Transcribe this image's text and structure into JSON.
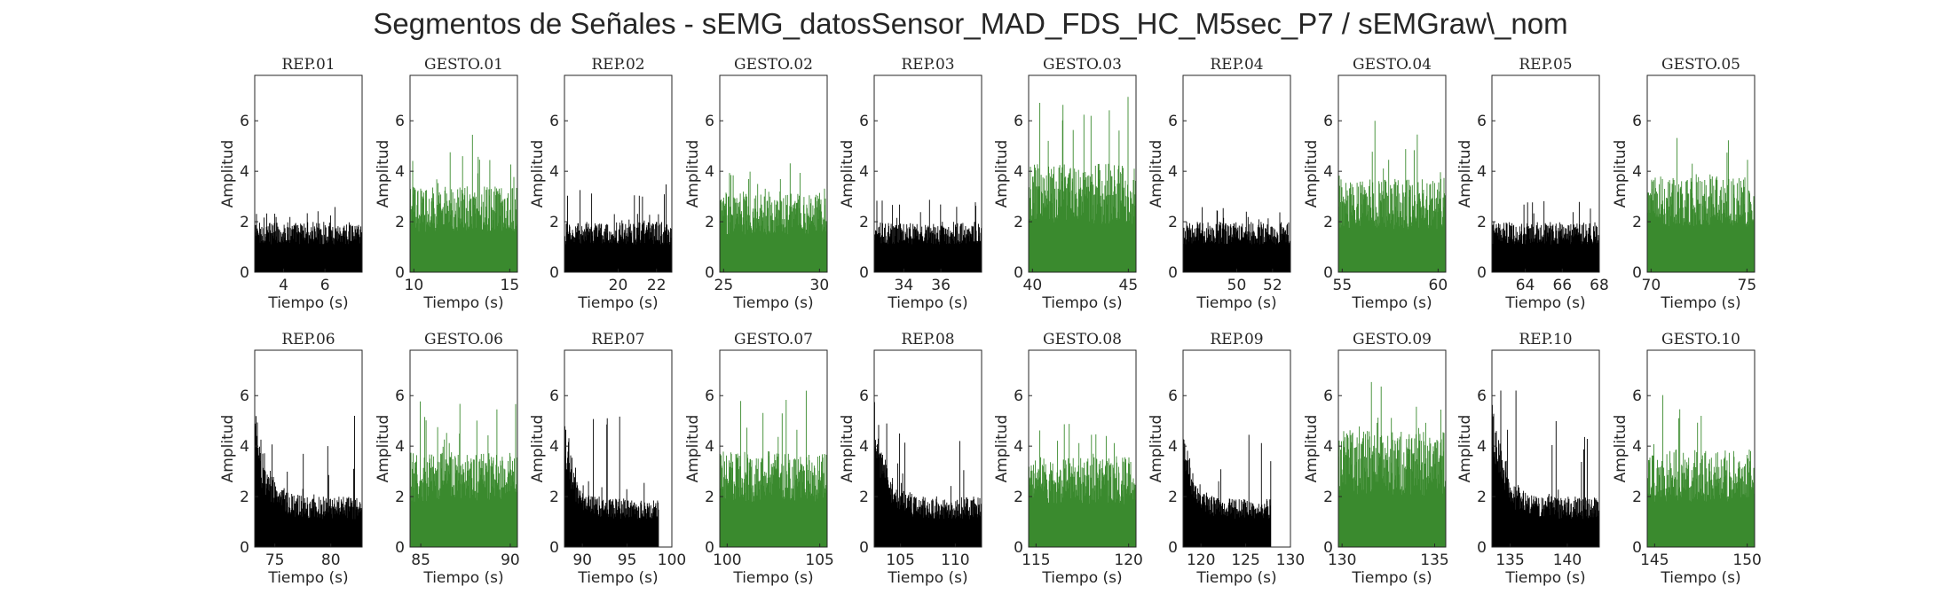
{
  "figure": {
    "title": "Segmentos de Señales - sEMG_datosSensor_MAD_FDS_HC_M5sec_P7 / sEMGraw\\_nom"
  },
  "chart_data": {
    "type": "bar",
    "description_colors": {
      "rep": "#000000",
      "gesto": "#3a8a2e"
    },
    "xlabel": "Tiempo (s)",
    "ylabel": "Amplitud",
    "ylim": [
      0,
      7.8
    ],
    "yticks": [
      0,
      2,
      4,
      6
    ],
    "panels": [
      {
        "title": "REP_01",
        "kind": "rep",
        "xlim": [
          2.6,
          7.8
        ],
        "xticks": [
          4,
          6
        ],
        "data_x": [
          2.6,
          7.8
        ],
        "base": 1.1,
        "noise": 0.9,
        "peak": 2.6,
        "decay": 0
      },
      {
        "title": "GESTO_01",
        "kind": "gesto",
        "xlim": [
          9.8,
          15.4
        ],
        "xticks": [
          10,
          15
        ],
        "data_x": [
          9.8,
          15.4
        ],
        "base": 1.6,
        "noise": 1.8,
        "peak": 5.5,
        "decay": 0
      },
      {
        "title": "REP_02",
        "kind": "rep",
        "xlim": [
          17.2,
          22.8
        ],
        "xticks": [
          20,
          22
        ],
        "data_x": [
          17.2,
          22.8
        ],
        "base": 1.1,
        "noise": 0.9,
        "peak": 3.8,
        "decay": 0
      },
      {
        "title": "GESTO_02",
        "kind": "gesto",
        "xlim": [
          24.8,
          30.4
        ],
        "xticks": [
          25,
          30
        ],
        "data_x": [
          24.8,
          30.4
        ],
        "base": 1.5,
        "noise": 1.7,
        "peak": 4.4,
        "decay": 0
      },
      {
        "title": "REP_03",
        "kind": "rep",
        "xlim": [
          32.4,
          38.2
        ],
        "xticks": [
          34,
          36
        ],
        "data_x": [
          32.4,
          38.2
        ],
        "base": 1.1,
        "noise": 0.9,
        "peak": 2.9,
        "decay": 0
      },
      {
        "title": "GESTO_03",
        "kind": "gesto",
        "xlim": [
          39.8,
          45.4
        ],
        "xticks": [
          40,
          45
        ],
        "data_x": [
          39.8,
          45.4
        ],
        "base": 1.9,
        "noise": 2.4,
        "peak": 7.3,
        "decay": 0
      },
      {
        "title": "REP_04",
        "kind": "rep",
        "xlim": [
          47.0,
          53.0
        ],
        "xticks": [
          50,
          52
        ],
        "data_x": [
          47.0,
          53.0
        ],
        "base": 1.1,
        "noise": 0.9,
        "peak": 2.6,
        "decay": 0
      },
      {
        "title": "GESTO_04",
        "kind": "gesto",
        "xlim": [
          54.8,
          60.4
        ],
        "xticks": [
          55,
          60
        ],
        "data_x": [
          54.8,
          60.4
        ],
        "base": 1.7,
        "noise": 2.0,
        "peak": 6.0,
        "decay": 0
      },
      {
        "title": "REP_05",
        "kind": "rep",
        "xlim": [
          62.2,
          68.0
        ],
        "xticks": [
          64,
          66,
          68
        ],
        "data_x": [
          62.2,
          68.0
        ],
        "base": 1.1,
        "noise": 0.9,
        "peak": 3.1,
        "decay": 0
      },
      {
        "title": "GESTO_05",
        "kind": "gesto",
        "xlim": [
          69.8,
          75.4
        ],
        "xticks": [
          70,
          75
        ],
        "data_x": [
          69.8,
          75.4
        ],
        "base": 1.8,
        "noise": 2.0,
        "peak": 5.4,
        "decay": 0
      },
      {
        "title": "REP_06",
        "kind": "rep",
        "xlim": [
          73.2,
          82.8
        ],
        "xticks": [
          75,
          80
        ],
        "data_x": [
          73.2,
          82.8
        ],
        "base": 1.1,
        "noise": 0.9,
        "peak": 5.5,
        "decay": 3.5
      },
      {
        "title": "GESTO_06",
        "kind": "gesto",
        "xlim": [
          84.4,
          90.4
        ],
        "xticks": [
          85,
          90
        ],
        "data_x": [
          84.4,
          90.4
        ],
        "base": 1.8,
        "noise": 2.0,
        "peak": 5.8,
        "decay": 0
      },
      {
        "title": "REP_07",
        "kind": "rep",
        "xlim": [
          88.0,
          100.0
        ],
        "xticks": [
          90,
          95,
          100
        ],
        "data_x": [
          88.0,
          98.5
        ],
        "base": 1.1,
        "noise": 0.8,
        "peak": 5.2,
        "decay": 3.2
      },
      {
        "title": "GESTO_07",
        "kind": "gesto",
        "xlim": [
          99.6,
          105.4
        ],
        "xticks": [
          100,
          105
        ],
        "data_x": [
          99.6,
          105.4
        ],
        "base": 1.8,
        "noise": 2.0,
        "peak": 6.6,
        "decay": 0
      },
      {
        "title": "REP_08",
        "kind": "rep",
        "xlim": [
          102.6,
          112.4
        ],
        "xticks": [
          105,
          110
        ],
        "data_x": [
          102.6,
          112.4
        ],
        "base": 1.1,
        "noise": 0.9,
        "peak": 5.8,
        "decay": 3.8
      },
      {
        "title": "GESTO_08",
        "kind": "gesto",
        "xlim": [
          114.6,
          120.4
        ],
        "xticks": [
          115,
          120
        ],
        "data_x": [
          114.6,
          120.4
        ],
        "base": 1.7,
        "noise": 1.9,
        "peak": 5.0,
        "decay": 0
      },
      {
        "title": "REP_09",
        "kind": "rep",
        "xlim": [
          118.0,
          130.0
        ],
        "xticks": [
          120,
          125,
          130
        ],
        "data_x": [
          118.0,
          127.8
        ],
        "base": 1.1,
        "noise": 0.8,
        "peak": 4.5,
        "decay": 3.0
      },
      {
        "title": "GESTO_09",
        "kind": "gesto",
        "xlim": [
          129.8,
          135.6
        ],
        "xticks": [
          130,
          135
        ],
        "data_x": [
          129.8,
          135.6
        ],
        "base": 2.0,
        "noise": 2.6,
        "peak": 7.0,
        "decay": 0
      },
      {
        "title": "REP_10",
        "kind": "rep",
        "xlim": [
          133.4,
          142.8
        ],
        "xticks": [
          135,
          140
        ],
        "data_x": [
          133.4,
          142.8
        ],
        "base": 1.1,
        "noise": 0.9,
        "peak": 6.2,
        "decay": 4.0
      },
      {
        "title": "GESTO_10",
        "kind": "gesto",
        "xlim": [
          144.6,
          150.4
        ],
        "xticks": [
          145,
          150
        ],
        "data_x": [
          144.6,
          150.4
        ],
        "base": 1.8,
        "noise": 2.1,
        "peak": 6.5,
        "decay": 0
      }
    ]
  }
}
